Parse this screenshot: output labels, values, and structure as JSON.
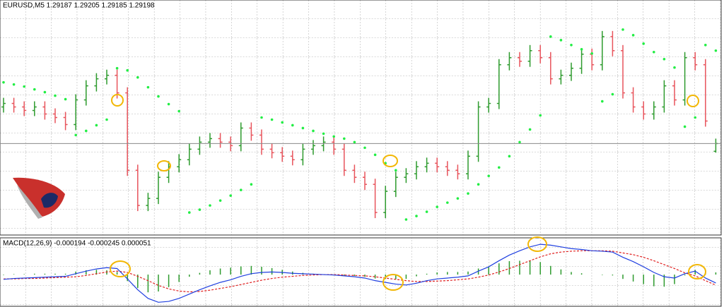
{
  "chart_data": [
    {
      "type": "ohlc",
      "title": "EURUSD,M5  1.29187 1.29205 1.29185 1.29198",
      "up_color": "#2e9b2e",
      "down_color": "#e8545c",
      "ylim": [
        1.2907,
        1.294
      ],
      "open": [
        1.2925,
        1.29255,
        1.2925,
        1.29245,
        1.2925,
        1.2924,
        1.29235,
        1.29225,
        1.2926,
        1.2928,
        1.2929,
        1.29295,
        1.2927,
        1.2916,
        1.2911,
        1.2912,
        1.2915,
        1.29165,
        1.29175,
        1.2919,
        1.292,
        1.29205,
        1.292,
        1.29195,
        1.2922,
        1.2921,
        1.2919,
        1.29185,
        1.2918,
        1.29175,
        1.2919,
        1.29195,
        1.292,
        1.2919,
        1.2916,
        1.2915,
        1.2914,
        1.291,
        1.2913,
        1.2915,
        1.29155,
        1.29165,
        1.2917,
        1.29165,
        1.2916,
        1.29155,
        1.2918,
        1.2925,
        1.29255,
        1.2931,
        1.2932,
        1.29315,
        1.2933,
        1.2932,
        1.2929,
        1.29295,
        1.29305,
        1.29325,
        1.2931,
        1.2935,
        1.2933,
        1.2927,
        1.2925,
        1.2924,
        1.2925,
        1.2928,
        1.2926,
        1.2932,
        1.2931,
        1.29187
      ],
      "high": [
        1.29263,
        1.29263,
        1.29258,
        1.29258,
        1.29258,
        1.29248,
        1.29243,
        1.29268,
        1.29288,
        1.29298,
        1.29303,
        1.29303,
        1.29278,
        1.29168,
        1.29128,
        1.29158,
        1.29173,
        1.29183,
        1.29198,
        1.29208,
        1.29213,
        1.29213,
        1.29208,
        1.29228,
        1.29228,
        1.29218,
        1.29198,
        1.29193,
        1.29188,
        1.29198,
        1.29203,
        1.29208,
        1.29208,
        1.29198,
        1.29168,
        1.29158,
        1.29148,
        1.29138,
        1.29158,
        1.29163,
        1.29173,
        1.29178,
        1.29178,
        1.29173,
        1.29168,
        1.29188,
        1.29258,
        1.29263,
        1.29318,
        1.29328,
        1.29328,
        1.29338,
        1.29338,
        1.29328,
        1.29303,
        1.29313,
        1.29333,
        1.29333,
        1.29358,
        1.29358,
        1.29338,
        1.29278,
        1.29258,
        1.29258,
        1.29288,
        1.29288,
        1.29328,
        1.29328,
        1.29318,
        1.29205
      ],
      "low": [
        1.29242,
        1.29242,
        1.29237,
        1.29237,
        1.29232,
        1.29227,
        1.29217,
        1.29217,
        1.29252,
        1.29272,
        1.29282,
        1.29262,
        1.29152,
        1.29102,
        1.29102,
        1.29112,
        1.29142,
        1.29157,
        1.29167,
        1.29182,
        1.29192,
        1.29192,
        1.29187,
        1.29187,
        1.29202,
        1.29182,
        1.29177,
        1.29172,
        1.29167,
        1.29167,
        1.29182,
        1.29187,
        1.29182,
        1.29152,
        1.29142,
        1.29132,
        1.29092,
        1.29092,
        1.29122,
        1.29142,
        1.29147,
        1.29157,
        1.29157,
        1.29152,
        1.29147,
        1.29147,
        1.29172,
        1.29242,
        1.29247,
        1.29302,
        1.29307,
        1.29307,
        1.29312,
        1.29282,
        1.29282,
        1.29287,
        1.29297,
        1.29302,
        1.29302,
        1.29322,
        1.29262,
        1.29242,
        1.29232,
        1.29232,
        1.29242,
        1.29252,
        1.29252,
        1.29302,
        1.29222,
        1.29185
      ],
      "close": [
        1.29255,
        1.2925,
        1.29245,
        1.2925,
        1.2924,
        1.29235,
        1.29225,
        1.2926,
        1.2928,
        1.2929,
        1.29295,
        1.2927,
        1.2916,
        1.2911,
        1.2912,
        1.2915,
        1.29165,
        1.29175,
        1.2919,
        1.292,
        1.29205,
        1.292,
        1.29195,
        1.2922,
        1.2921,
        1.2919,
        1.29185,
        1.2918,
        1.29175,
        1.2919,
        1.29195,
        1.292,
        1.2919,
        1.2916,
        1.2915,
        1.2914,
        1.291,
        1.2913,
        1.2915,
        1.29155,
        1.29165,
        1.2917,
        1.29165,
        1.2916,
        1.29155,
        1.2918,
        1.2925,
        1.29255,
        1.2931,
        1.2932,
        1.29315,
        1.2933,
        1.2932,
        1.2929,
        1.29295,
        1.29305,
        1.29325,
        1.2931,
        1.2935,
        1.2933,
        1.2927,
        1.2925,
        1.2924,
        1.2925,
        1.2928,
        1.2926,
        1.2932,
        1.2931,
        1.2923,
        1.29198
      ],
      "overlay": {
        "type": "dots",
        "color": "#22ee44",
        "values": [
          1.29285,
          1.29282,
          1.29279,
          1.29275,
          1.29271,
          1.29266,
          1.29261,
          1.2921,
          1.29216,
          1.29224,
          1.29232,
          1.29305,
          1.29302,
          1.29292,
          1.29278,
          1.29265,
          1.29254,
          1.29244,
          1.291,
          1.29104,
          1.2911,
          1.29117,
          1.29124,
          1.29132,
          1.2914,
          1.29235,
          1.29232,
          1.29228,
          1.29224,
          1.2922,
          1.29216,
          1.29212,
          1.29208,
          1.29205,
          1.292,
          1.29192,
          1.29182,
          1.2917,
          1.2916,
          1.2909,
          1.29095,
          1.29101,
          1.29108,
          1.29114,
          1.2912,
          1.29127,
          1.2914,
          1.29152,
          1.29164,
          1.2918,
          1.292,
          1.29218,
          1.29238,
          1.2935,
          1.29345,
          1.29338,
          1.29332,
          1.29326,
          1.29258,
          1.29268,
          1.2936,
          1.29352,
          1.2934,
          1.29328,
          1.29318,
          1.29306,
          1.29222,
          1.29235,
          1.29338,
          1.2933
        ]
      }
    },
    {
      "type": "macd",
      "title": "MACD(12,26,9) -0.000194 -0.000245 0.000051",
      "ylim": [
        -0.0007,
        0.0008
      ],
      "macd": {
        "color": "#1f3fe0",
        "values": [
          -0.00011,
          -9e-05,
          -8e-05,
          -7e-05,
          -6e-05,
          -5e-05,
          -4e-05,
          2e-05,
          8e-05,
          0.00013,
          0.00016,
          0.00014,
          -0.0001,
          -0.00035,
          -0.00055,
          -0.00064,
          -0.00062,
          -0.00055,
          -0.00045,
          -0.00035,
          -0.00026,
          -0.00018,
          -0.00012,
          -4e-05,
          2e-05,
          5e-05,
          6e-05,
          5e-05,
          3e-05,
          2e-05,
          1e-05,
          0,
          -1e-05,
          -3e-05,
          -5e-05,
          -8e-05,
          -0.00014,
          -0.00018,
          -0.00022,
          -0.00024,
          -0.0002,
          -0.00014,
          -0.0001,
          -8e-05,
          -6e-05,
          -3e-05,
          8e-05,
          0.00018,
          0.00032,
          0.00045,
          0.00055,
          0.00064,
          0.0007,
          0.00068,
          0.00064,
          0.0006,
          0.00058,
          0.00055,
          0.00054,
          0.00052,
          0.0004,
          0.0003,
          0.00018,
          5e-05,
          -5e-05,
          -8e-05,
          2e-05,
          8e-05,
          -8e-05,
          -0.000194
        ]
      },
      "signal": {
        "color": "#e02020",
        "values": [
          -0.0001,
          -0.0001,
          -9e-05,
          -9e-05,
          -8e-05,
          -7e-05,
          -6e-05,
          -5e-05,
          -2e-05,
          2e-05,
          6e-05,
          8e-05,
          5e-05,
          -4e-05,
          -0.00014,
          -0.00025,
          -0.00033,
          -0.00038,
          -0.0004,
          -0.00039,
          -0.00036,
          -0.00032,
          -0.00028,
          -0.00023,
          -0.00018,
          -0.00013,
          -9e-05,
          -6e-05,
          -4e-05,
          -2e-05,
          -1e-05,
          0,
          0,
          -1e-05,
          -2e-05,
          -3e-05,
          -5e-05,
          -8e-05,
          -0.00011,
          -0.00014,
          -0.00016,
          -0.00016,
          -0.00015,
          -0.00014,
          -0.00012,
          -0.0001,
          -6e-05,
          -1e-05,
          6e-05,
          0.00014,
          0.00023,
          0.00032,
          0.00041,
          0.00048,
          0.00052,
          0.00054,
          0.00055,
          0.00055,
          0.00055,
          0.00054,
          0.0005,
          0.00046,
          0.0004,
          0.00032,
          0.00023,
          0.00014,
          4e-05,
          -3e-05,
          -0.00014,
          -0.000245
        ]
      },
      "histogram": {
        "color": "#2e9b2e",
        "values": [
          -1e-05,
          1e-05,
          1e-05,
          2e-05,
          2e-05,
          2e-05,
          2e-05,
          7e-05,
          0.0001,
          0.00011,
          0.0001,
          6e-05,
          -0.00015,
          -0.00031,
          -0.00041,
          -0.00039,
          -0.00029,
          -0.00017,
          -5e-05,
          4e-05,
          0.0001,
          0.00014,
          0.00016,
          0.00019,
          0.0002,
          0.00018,
          0.00015,
          0.00011,
          7e-05,
          4e-05,
          2e-05,
          0,
          -1e-05,
          -2e-05,
          -3e-05,
          -5e-05,
          -9e-05,
          -0.0001,
          -0.00011,
          -0.0001,
          -4e-05,
          2e-05,
          5e-05,
          6e-05,
          6e-05,
          7e-05,
          0.00014,
          0.00019,
          0.00026,
          0.00031,
          0.00032,
          0.00032,
          0.00029,
          0.0002,
          0.00012,
          6e-05,
          3e-05,
          0,
          -1e-05,
          -2e-05,
          -0.0001,
          -0.00016,
          -0.00022,
          -0.00027,
          -0.00028,
          -0.00022,
          -2e-05,
          0.00011,
          6e-05,
          5.1e-05
        ]
      }
    }
  ]
}
